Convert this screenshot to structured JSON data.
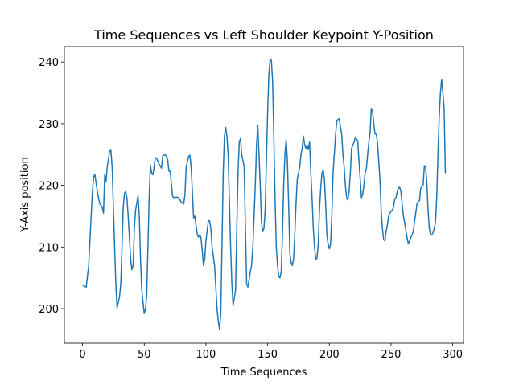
{
  "chart_data": {
    "type": "line",
    "title": "Time Sequences vs Left Shoulder Keypoint Y-Position",
    "xlabel": "Time Sequences",
    "ylabel": "Y-Axis position",
    "xlim": [
      -14.7,
      308.7
    ],
    "ylim": [
      194.4,
      242.5
    ],
    "xticks": [
      0,
      50,
      100,
      150,
      200,
      250,
      300
    ],
    "yticks": [
      200,
      210,
      220,
      230,
      240
    ],
    "series": [
      {
        "color": "#1f77b4",
        "x": [
          0,
          3,
          5,
          7,
          8,
          9,
          10,
          12,
          14,
          16,
          17,
          18,
          19,
          20,
          22,
          23,
          24,
          26,
          27,
          28,
          30,
          31,
          32,
          33,
          34,
          35,
          36,
          37,
          39,
          40,
          41,
          42,
          43,
          45,
          46,
          47,
          48,
          50,
          51,
          52,
          53,
          54,
          55,
          56,
          57,
          58,
          59,
          60,
          62,
          64,
          65,
          67,
          69,
          70,
          71,
          73,
          74,
          76,
          78,
          80,
          82,
          83,
          84,
          86,
          87,
          88,
          89,
          90,
          91,
          93,
          94,
          95,
          96,
          97,
          98,
          99,
          100,
          102,
          103,
          104,
          105,
          107,
          109,
          110,
          111,
          112,
          113,
          114,
          115,
          116,
          117,
          118,
          120,
          121,
          122,
          124,
          125,
          126,
          127,
          128,
          129,
          131,
          132,
          133,
          134,
          136,
          137,
          138,
          140,
          141,
          142,
          143,
          144,
          145,
          146,
          147,
          148,
          149,
          150,
          151,
          152,
          153,
          154,
          155,
          156,
          157,
          158,
          159,
          160,
          161,
          162,
          163,
          164,
          165,
          166,
          167,
          168,
          169,
          170,
          171,
          172,
          173,
          174,
          176,
          177,
          178,
          179,
          180,
          181,
          182,
          183,
          184,
          185,
          186,
          187,
          188,
          189,
          190,
          191,
          192,
          193,
          194,
          195,
          196,
          197,
          198,
          199,
          200,
          201,
          202,
          203,
          204,
          205,
          206,
          207,
          208,
          209,
          210,
          211,
          212,
          213,
          214,
          215,
          216,
          217,
          218,
          219,
          220,
          221,
          222,
          223,
          224,
          225,
          226,
          227,
          228,
          229,
          230,
          231,
          232,
          233,
          234,
          235,
          236,
          237,
          238,
          239,
          240,
          241,
          242,
          243,
          244,
          245,
          246,
          247,
          248,
          249,
          250,
          251,
          252,
          253,
          254,
          255,
          256,
          257,
          258,
          259,
          260,
          261,
          262,
          263,
          264,
          265,
          266,
          267,
          268,
          269,
          270,
          271,
          272,
          273,
          274,
          275,
          276,
          277,
          278,
          279,
          280,
          281,
          282,
          283,
          284,
          285,
          286,
          287,
          288,
          289,
          290,
          291,
          292,
          293,
          294
        ],
        "values": [
          203.8,
          203.5,
          207,
          215,
          219,
          221.3,
          221.8,
          219,
          217,
          216.5,
          215.5,
          221.8,
          220.5,
          223,
          225.5,
          225.7,
          223,
          210,
          204,
          200.1,
          202,
          204,
          210,
          216.5,
          218.7,
          219,
          218,
          215,
          208,
          206.3,
          207,
          213,
          216,
          218.3,
          215,
          208,
          203,
          199.2,
          200,
          202,
          210,
          218,
          223.3,
          222,
          221.7,
          223,
          224.5,
          224.4,
          223.5,
          222.8,
          224.8,
          225,
          224.3,
          222.3,
          222.3,
          218.2,
          218,
          218.1,
          218,
          217.3,
          217,
          218.5,
          223,
          224.7,
          224.9,
          223,
          219,
          214.7,
          215,
          212,
          211.6,
          212,
          211.5,
          209.5,
          207,
          208,
          211,
          214.3,
          214.2,
          213,
          210,
          207,
          200,
          198,
          196.7,
          199,
          210,
          222,
          228,
          229.4,
          228,
          225,
          210,
          204,
          200.5,
          203,
          213,
          222,
          227,
          227.6,
          225,
          223,
          213,
          204,
          203.5,
          206,
          207,
          210,
          220,
          226.5,
          229.8,
          225,
          220,
          214,
          212.5,
          213,
          216,
          224,
          232,
          238,
          240.4,
          240.3,
          237,
          228,
          218,
          210,
          207,
          205.2,
          205,
          206,
          212,
          220,
          225,
          227.4,
          224,
          217,
          209,
          207.5,
          207,
          208,
          212,
          217,
          221,
          223,
          225,
          226,
          228,
          226.5,
          226,
          226.5,
          225.8,
          227,
          222,
          218,
          213,
          210,
          208,
          208.2,
          210.5,
          216,
          219.5,
          222,
          222.5,
          221,
          217,
          212,
          210.5,
          209.7,
          210.5,
          215,
          222,
          225,
          228,
          230.5,
          230.7,
          230.8,
          229.5,
          228.3,
          225,
          223,
          220,
          218,
          217.6,
          219,
          222,
          226,
          226.5,
          227,
          227.7,
          227.5,
          227.2,
          224,
          221,
          218,
          218.5,
          220,
          222,
          222.7,
          225,
          227,
          228.5,
          232.5,
          232,
          230,
          228.3,
          228.3,
          227,
          224,
          221,
          216,
          213,
          211.2,
          211,
          212.5,
          213.5,
          215,
          215.5,
          215.8,
          216,
          216.5,
          217.8,
          218,
          219,
          219.5,
          219.7,
          219,
          217,
          215,
          214,
          212.7,
          211.5,
          210.5,
          211,
          211.5,
          212,
          212.5,
          214,
          215.5,
          217,
          217.4,
          217.5,
          219.5,
          219.8,
          220,
          223.2,
          223,
          220.5,
          216,
          213,
          212,
          212,
          212.3,
          213,
          214,
          218,
          225,
          231,
          235,
          237.2,
          235,
          232.5,
          222
        ]
      }
    ]
  }
}
